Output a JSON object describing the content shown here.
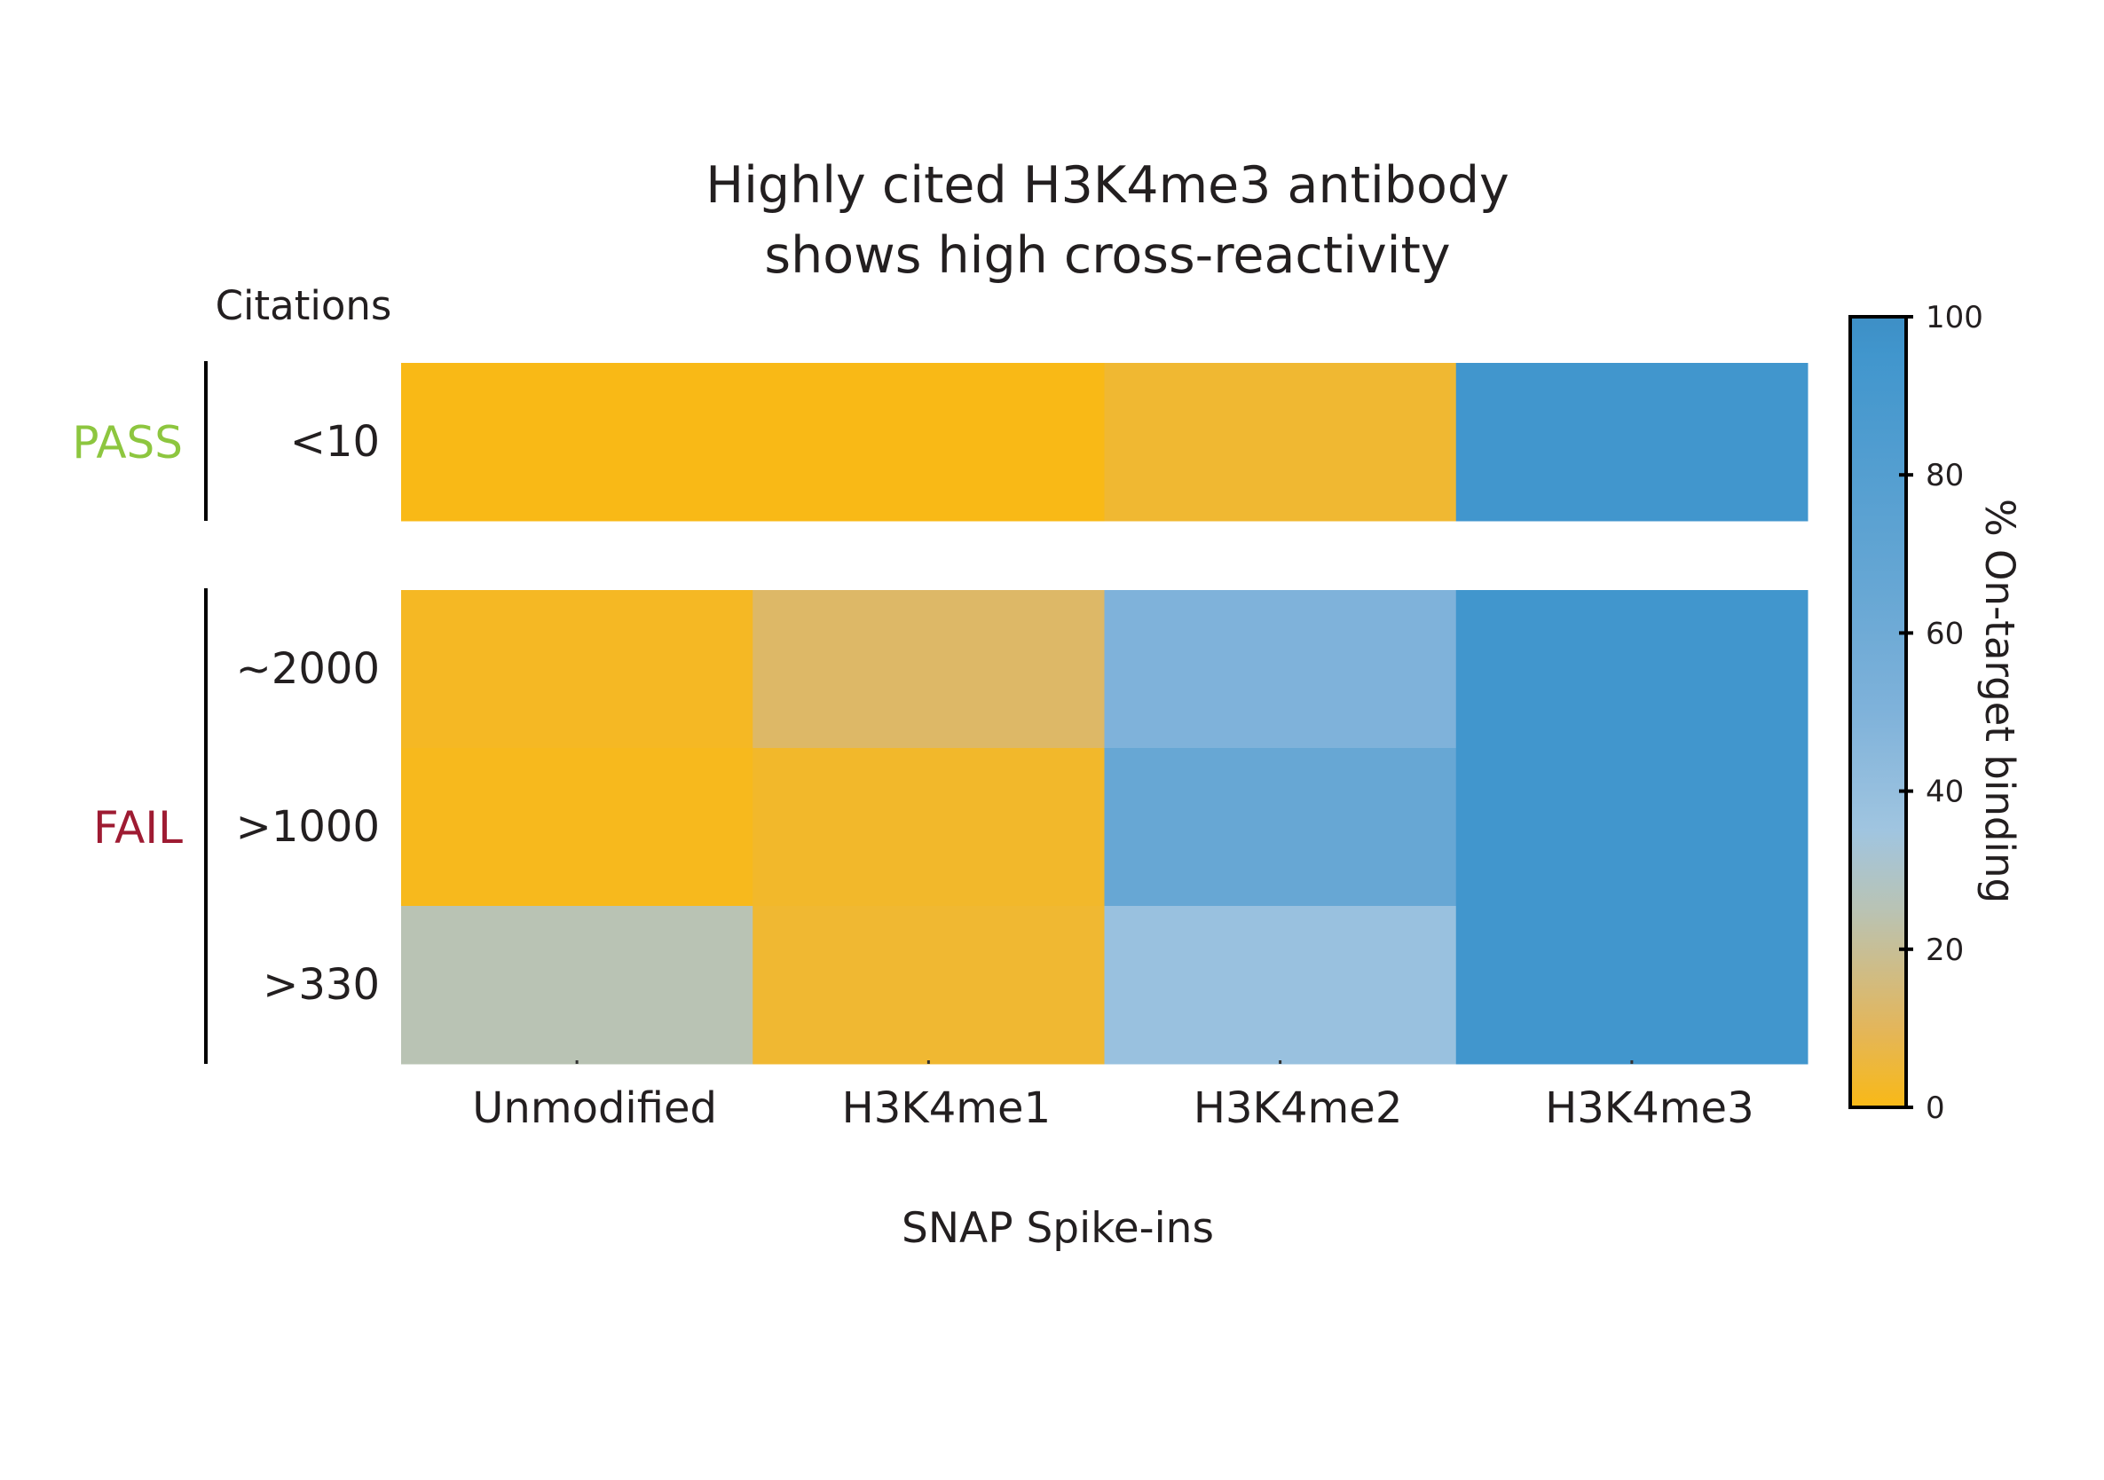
{
  "chart_data": {
    "type": "heatmap",
    "title": [
      "Highly cited H3K4me3 antibody",
      "shows high cross-reactivity"
    ],
    "xlabel": "SNAP Spike-ins",
    "row_header": "Citations",
    "x": [
      "Unmodified",
      "H3K4me1",
      "H3K4me2",
      "H3K4me3"
    ],
    "groups": [
      {
        "label": "PASS",
        "color": "#8dc63f",
        "rows": [
          "<10"
        ]
      },
      {
        "label": "FAIL",
        "color": "#9e1b32",
        "rows": [
          "~2000",
          ">1000",
          ">330"
        ]
      }
    ],
    "values": [
      [
        0,
        0,
        4,
        95
      ],
      [
        2,
        12,
        50,
        95
      ],
      [
        1,
        3,
        65,
        95
      ],
      [
        25,
        4,
        38,
        95
      ]
    ],
    "colorbar": {
      "label": "% On-target binding",
      "range": [
        0,
        100
      ],
      "ticks": [
        0,
        20,
        40,
        60,
        80,
        100
      ],
      "stops": [
        {
          "value": 0,
          "color": "#f9b916"
        },
        {
          "value": 10,
          "color": "#e3b65b"
        },
        {
          "value": 25,
          "color": "#b9c3b4"
        },
        {
          "value": 35,
          "color": "#a0c5e0"
        },
        {
          "value": 50,
          "color": "#7fb2da"
        },
        {
          "value": 65,
          "color": "#67a7d4"
        },
        {
          "value": 95,
          "color": "#4196cd"
        },
        {
          "value": 100,
          "color": "#3d8fc6"
        }
      ]
    }
  }
}
